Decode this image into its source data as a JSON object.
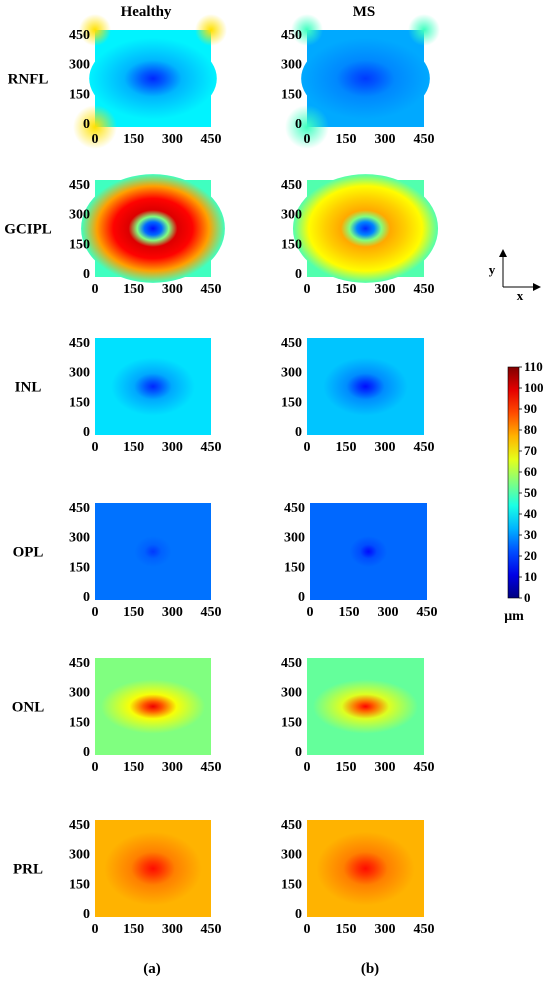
{
  "chart_data": {
    "type": "heatmap",
    "columns": [
      {
        "label": "Healthy",
        "panel_label": "(a)"
      },
      {
        "label": "MS",
        "panel_label": "(b)"
      }
    ],
    "rows": [
      {
        "label": "RNFL",
        "healthy": {
          "center": 18,
          "edge": 40,
          "corner": 72
        },
        "ms": {
          "center": 20,
          "edge": 32,
          "corner": 48
        }
      },
      {
        "label": "GCIPL",
        "healthy": {
          "center": 15,
          "ring": 100,
          "edge": 48
        },
        "ms": {
          "center": 18,
          "ring": 78,
          "edge": 50
        }
      },
      {
        "label": "INL",
        "healthy": {
          "center": 18,
          "edge": 38
        },
        "ms": {
          "center": 15,
          "edge": 35
        }
      },
      {
        "label": "OPL",
        "healthy": {
          "center": 20,
          "edge": 26
        },
        "ms": {
          "center": 15,
          "edge": 25
        }
      },
      {
        "label": "ONL",
        "healthy": {
          "center": 98,
          "edge": 55
        },
        "ms": {
          "center": 96,
          "edge": 52
        }
      },
      {
        "label": "PRL",
        "healthy": {
          "center": 95,
          "edge": 77
        },
        "ms": {
          "center": 95,
          "edge": 77
        }
      }
    ],
    "x_ticks": [
      "0",
      "150",
      "300",
      "450"
    ],
    "y_ticks": [
      "450",
      "300",
      "150",
      "0"
    ],
    "xlim": [
      0,
      450
    ],
    "ylim": [
      0,
      450
    ],
    "colorbar": {
      "ticks": [
        "110",
        "100",
        "90",
        "80",
        "70",
        "60",
        "50",
        "40",
        "30",
        "20",
        "10",
        "0"
      ],
      "range": [
        0,
        110
      ],
      "unit": "μm",
      "colormap": "jet"
    },
    "axes_indicator": {
      "x": "x",
      "y": "y"
    }
  }
}
